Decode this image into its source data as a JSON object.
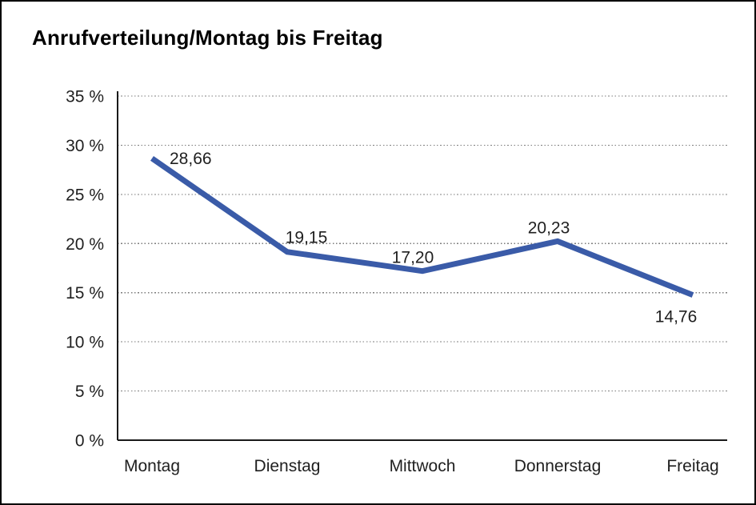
{
  "page": {
    "title": "Anrufverteilung/Montag bis Freitag"
  },
  "chart_data": {
    "type": "line",
    "title": "Anrufverteilung/Montag bis Freitag",
    "categories": [
      "Montag",
      "Dienstag",
      "Mittwoch",
      "Donnerstag",
      "Freitag"
    ],
    "series": [
      {
        "name": "Anrufverteilung",
        "values": [
          28.66,
          19.15,
          17.2,
          20.23,
          14.76
        ],
        "value_labels": [
          "28,66",
          "19,15",
          "17,20",
          "20,23",
          "14,76"
        ]
      }
    ],
    "xlabel": "",
    "ylabel": "",
    "ylim": [
      0,
      35
    ],
    "ytick_step": 5,
    "ytick_labels": [
      "0 %",
      "5 %",
      "10 %",
      "15 %",
      "20 %",
      "25 %",
      "30 %",
      "35 %"
    ],
    "grid": "horizontal-dotted",
    "legend_position": "none"
  },
  "colors": {
    "line": "#3A5BA8",
    "axis": "#1a1a1a",
    "grid": "#7d7d7d",
    "text": "#1f1f1f",
    "background": "#ffffff",
    "frame": "#000000"
  }
}
